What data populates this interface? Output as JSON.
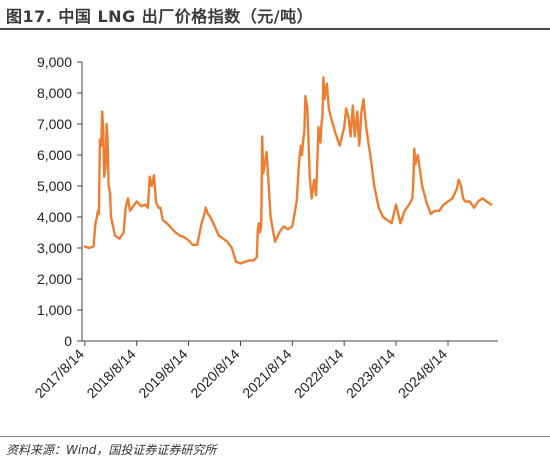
{
  "figure": {
    "title": "图17. 中国 LNG 出厂价格指数（元/吨）",
    "source": "资料来源：Wind，国投证券证券研究所"
  },
  "colors": {
    "line": "#ED7D31",
    "axis": "#444444",
    "text": "#222222"
  },
  "chart_data": {
    "type": "line",
    "title": "",
    "xlabel": "",
    "ylabel": "",
    "ylim": [
      0,
      9000
    ],
    "grid": false,
    "legend": "none",
    "y_ticks": [
      "0",
      "1,000",
      "2,000",
      "3,000",
      "4,000",
      "5,000",
      "6,000",
      "7,000",
      "8,000",
      "9,000"
    ],
    "x_ticks": [
      "2017/8/14",
      "2018/8/14",
      "2019/8/14",
      "2020/8/14",
      "2021/8/14",
      "2022/8/14",
      "2023/8/14",
      "2024/8/14"
    ],
    "series": [
      {
        "x": [
          "2017/8/14",
          "2017/9/14",
          "2017/10/14",
          "2017/10/28",
          "2017/11/7",
          "2017/11/14",
          "2017/11/21",
          "2017/11/28",
          "2017/12/7",
          "2017/12/14",
          "2017/12/21",
          "2017/12/28",
          "2018/1/7",
          "2018/1/14",
          "2018/1/21",
          "2018/1/28",
          "2018/2/7",
          "2018/2/14",
          "2018/2/28",
          "2018/3/14",
          "2018/4/14",
          "2018/5/14",
          "2018/5/28",
          "2018/6/14",
          "2018/6/28",
          "2018/7/14",
          "2018/8/14",
          "2018/9/14",
          "2018/10/14",
          "2018/11/1",
          "2018/11/14",
          "2018/11/28",
          "2018/12/14",
          "2018/12/28",
          "2019/1/14",
          "2019/1/28",
          "2019/2/14",
          "2019/3/14",
          "2019/4/14",
          "2019/5/14",
          "2019/6/14",
          "2019/7/14",
          "2019/8/14",
          "2019/9/14",
          "2019/10/14",
          "2019/11/14",
          "2019/11/28",
          "2019/12/14",
          "2019/12/28",
          "2020/1/14",
          "2020/2/14",
          "2020/3/14",
          "2020/4/14",
          "2020/5/14",
          "2020/6/14",
          "2020/7/14",
          "2020/8/14",
          "2020/9/14",
          "2020/10/14",
          "2020/11/14",
          "2020/12/7",
          "2020/12/14",
          "2020/12/21",
          "2020/12/28",
          "2021/1/7",
          "2021/1/14",
          "2021/1/21",
          "2021/2/14",
          "2021/3/14",
          "2021/4/14",
          "2021/5/14",
          "2021/6/14",
          "2021/7/14",
          "2021/8/14",
          "2021/9/14",
          "2021/9/28",
          "2021/10/7",
          "2021/10/14",
          "2021/10/21",
          "2021/10/28",
          "2021/11/7",
          "2021/11/14",
          "2021/11/28",
          "2021/12/14",
          "2021/12/28",
          "2022/1/14",
          "2022/1/28",
          "2022/2/14",
          "2022/2/28",
          "2022/3/7",
          "2022/3/14",
          "2022/3/21",
          "2022/3/28",
          "2022/4/14",
          "2022/4/28",
          "2022/5/14",
          "2022/6/14",
          "2022/7/14",
          "2022/8/14",
          "2022/8/28",
          "2022/9/14",
          "2022/9/28",
          "2022/10/14",
          "2022/10/28",
          "2022/11/14",
          "2022/11/28",
          "2022/12/14",
          "2022/12/28",
          "2023/1/14",
          "2023/1/28",
          "2023/2/14",
          "2023/3/14",
          "2023/4/14",
          "2023/5/14",
          "2023/6/14",
          "2023/7/14",
          "2023/8/14",
          "2023/9/14",
          "2023/10/14",
          "2023/11/14",
          "2023/12/7",
          "2023/12/14",
          "2023/12/21",
          "2023/12/28",
          "2024/1/14",
          "2024/2/14",
          "2024/3/14",
          "2024/4/14",
          "2024/5/14",
          "2024/6/14",
          "2024/7/14",
          "2024/8/14",
          "2024/9/14",
          "2024/10/14",
          "2024/10/28",
          "2024/11/14",
          "2024/11/28",
          "2024/12/14",
          "2025/1/14",
          "2025/2/14",
          "2025/3/14",
          "2025/4/14",
          "2025/5/14",
          "2025/6/14"
        ],
        "values": [
          3050,
          3000,
          3050,
          3800,
          4000,
          4200,
          4100,
          6500,
          6300,
          7400,
          6800,
          5300,
          5600,
          7000,
          6500,
          5000,
          4800,
          4000,
          3700,
          3400,
          3300,
          3500,
          4300,
          4600,
          4200,
          4300,
          4500,
          4350,
          4400,
          4300,
          5300,
          5000,
          5350,
          4500,
          4300,
          4300,
          3900,
          3800,
          3650,
          3500,
          3400,
          3350,
          3250,
          3100,
          3100,
          3800,
          4000,
          4300,
          4100,
          4000,
          3700,
          3400,
          3300,
          3200,
          3000,
          2550,
          2500,
          2550,
          2600,
          2600,
          2700,
          3600,
          3800,
          3500,
          3700,
          6600,
          5400,
          6100,
          4000,
          3200,
          3500,
          3700,
          3600,
          3700,
          4500,
          5600,
          6100,
          6300,
          6000,
          6400,
          6800,
          7900,
          7500,
          5300,
          4600,
          5200,
          4700,
          6900,
          6400,
          7000,
          7300,
          8500,
          7800,
          8300,
          7500,
          7200,
          6700,
          6300,
          6900,
          7500,
          7200,
          6600,
          7600,
          6600,
          7400,
          6300,
          7400,
          7800,
          7000,
          6500,
          6000,
          5000,
          4300,
          4000,
          3900,
          3800,
          4400,
          3800,
          4200,
          4400,
          4600,
          5200,
          6200,
          5700,
          6000,
          5000,
          4500,
          4100,
          4200,
          4200,
          4400,
          4500,
          4600,
          4900,
          5200,
          5000,
          4600,
          4500,
          4500,
          4300,
          4500,
          4600,
          4500,
          4400
        ]
      }
    ]
  }
}
